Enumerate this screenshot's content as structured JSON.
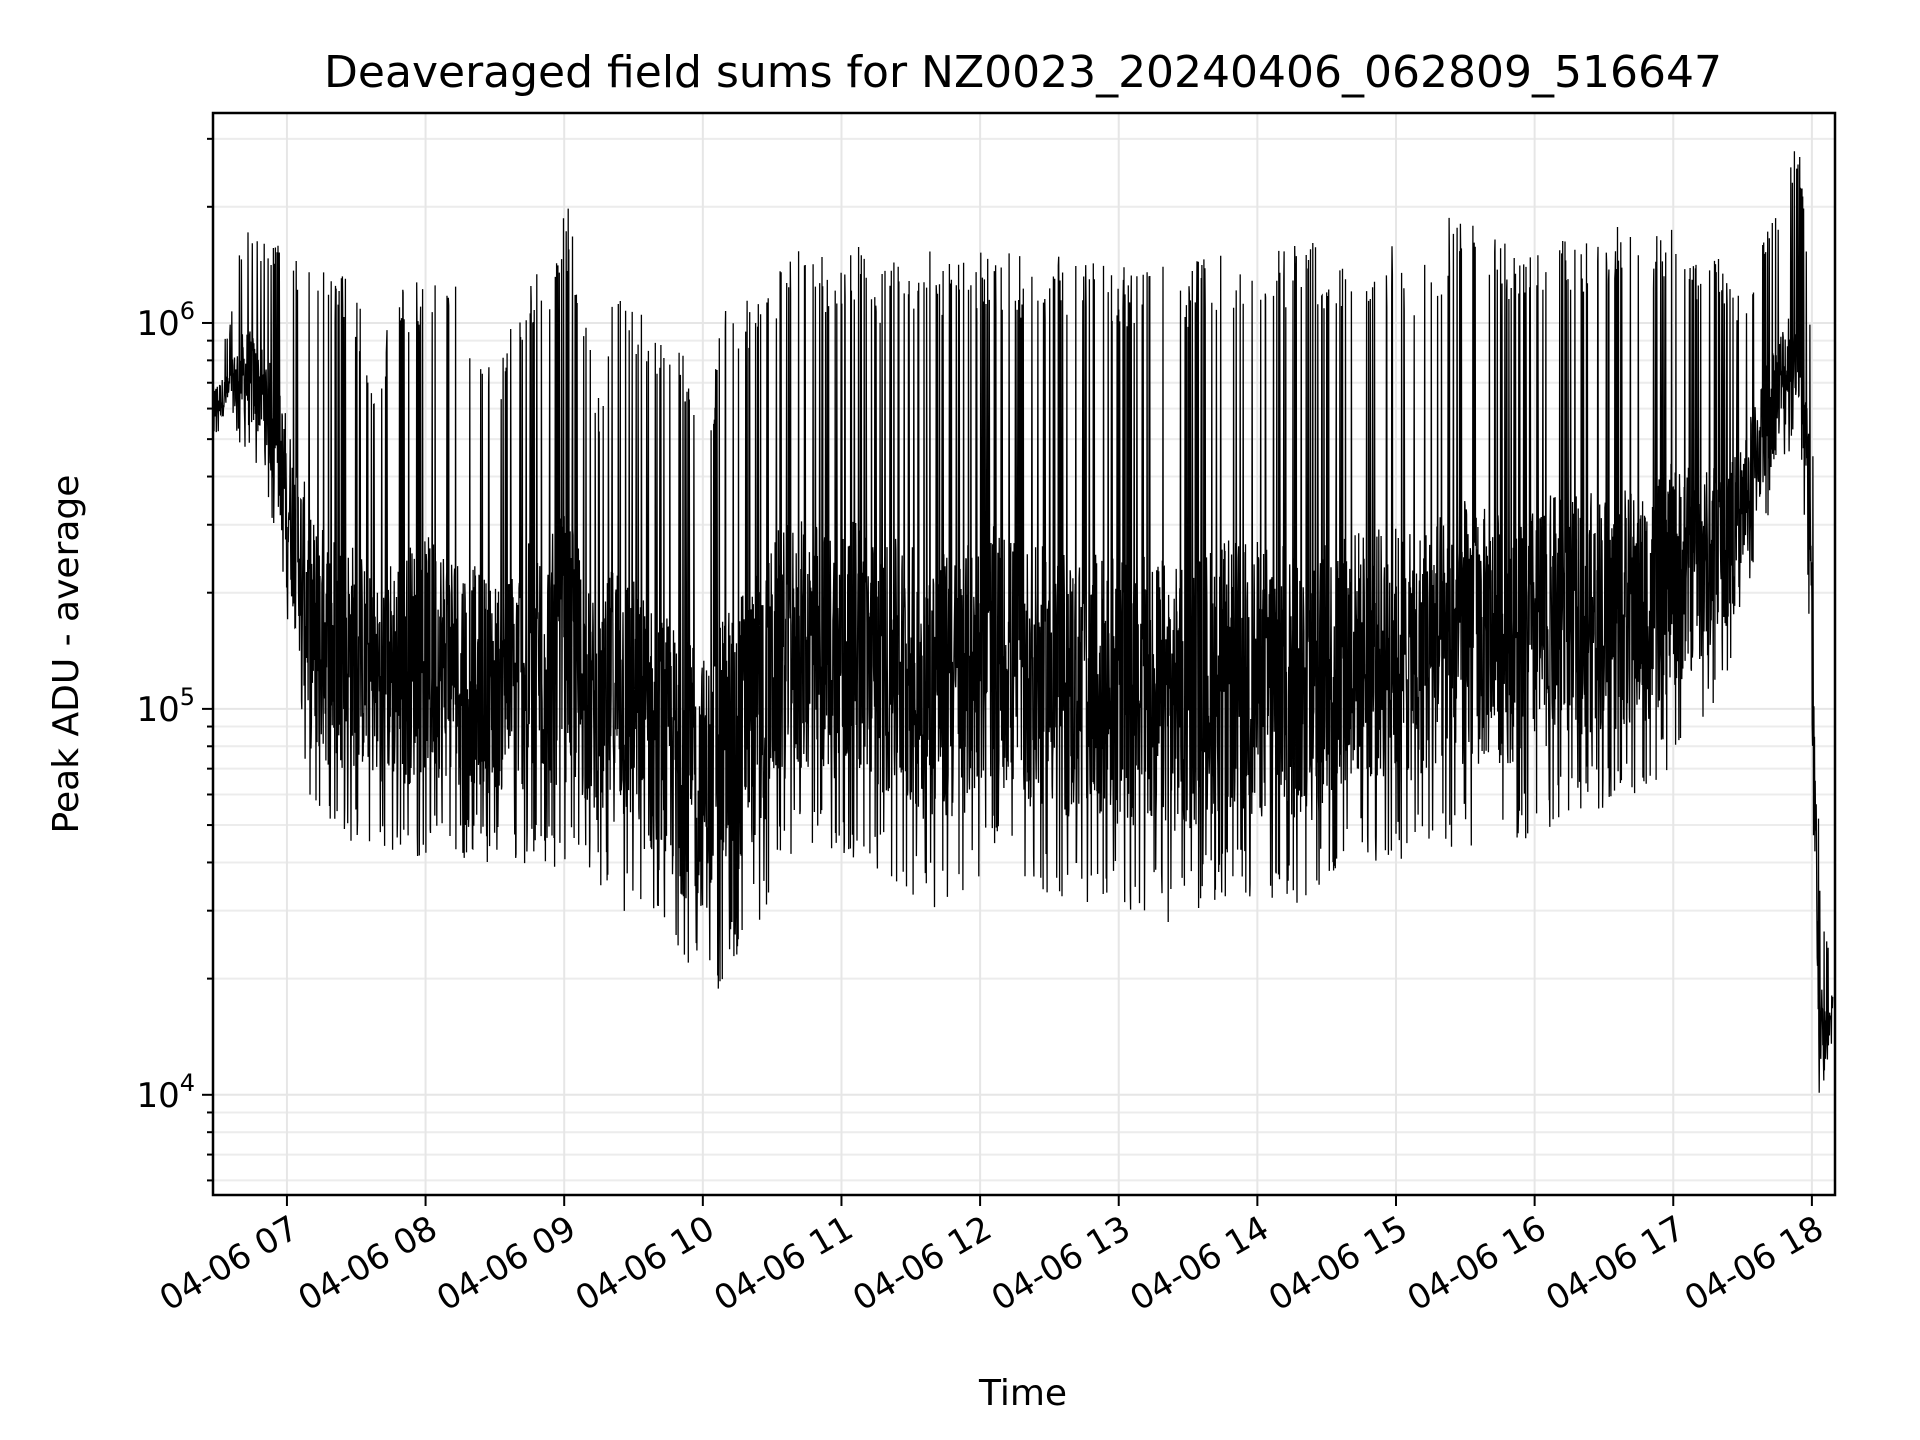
{
  "chart_data": {
    "type": "line",
    "title": "Deaveraged field sums for NZ0023_20240406_062809_516647",
    "xlabel": "Time",
    "ylabel": "Peak ADU - average",
    "yscale": "log",
    "xlim": [
      "04-06 06:28",
      "04-06 18:10"
    ],
    "ylim": [
      5500,
      3500000
    ],
    "x_ticks": [
      "04-06 07",
      "04-06 08",
      "04-06 09",
      "04-06 10",
      "04-06 11",
      "04-06 12",
      "04-06 13",
      "04-06 14",
      "04-06 15",
      "04-06 16",
      "04-06 17",
      "04-06 18"
    ],
    "y_ticks": [
      {
        "value": 10000,
        "base": "10",
        "exp": "4"
      },
      {
        "value": 100000,
        "base": "10",
        "exp": "5"
      },
      {
        "value": 1000000,
        "base": "10",
        "exp": "6"
      }
    ],
    "grid": true,
    "line_color": "#000000",
    "series": [
      {
        "x": [
          "06:28",
          "06:35",
          "06:42",
          "06:49",
          "06:56",
          "07:03",
          "07:10",
          "07:17",
          "07:24",
          "07:31",
          "07:38",
          "07:45",
          "07:52",
          "07:59",
          "08:06",
          "08:13",
          "08:20",
          "08:27",
          "08:34",
          "08:41",
          "08:48",
          "08:55",
          "09:02",
          "09:09",
          "09:16",
          "09:23",
          "09:30",
          "09:37",
          "09:44",
          "09:51",
          "09:58",
          "10:05",
          "10:12",
          "10:19",
          "10:26",
          "10:33",
          "10:40",
          "10:47",
          "10:54",
          "11:01",
          "11:08",
          "11:15",
          "11:22",
          "11:29",
          "11:36",
          "11:43",
          "11:50",
          "11:57",
          "12:04",
          "12:11",
          "12:18",
          "12:25",
          "12:32",
          "12:39",
          "12:46",
          "12:53",
          "13:00",
          "13:07",
          "13:14",
          "13:21",
          "13:28",
          "13:35",
          "13:42",
          "13:49",
          "13:56",
          "14:03",
          "14:10",
          "14:17",
          "14:24",
          "14:31",
          "14:38",
          "14:45",
          "14:52",
          "14:59",
          "15:06",
          "15:13",
          "15:20",
          "15:27",
          "15:34",
          "15:41",
          "15:48",
          "15:55",
          "16:02",
          "16:09",
          "16:16",
          "16:23",
          "16:30",
          "16:37",
          "16:44",
          "16:51",
          "16:58",
          "17:05",
          "17:12",
          "17:19",
          "17:26",
          "17:33",
          "17:40",
          "17:47",
          "17:54",
          "17:59",
          "18:01",
          "18:03",
          "18:05",
          "18:07",
          "18:09"
        ],
        "low": [
          500000,
          550000,
          450000,
          420000,
          250000,
          120000,
          50000,
          45000,
          45000,
          45000,
          45000,
          42000,
          40000,
          42000,
          42000,
          40000,
          42000,
          40000,
          40000,
          38000,
          40000,
          38000,
          38000,
          36000,
          34000,
          30000,
          28000,
          25000,
          22000,
          20000,
          19000,
          18000,
          20000,
          25000,
          28000,
          40000,
          42000,
          42000,
          42000,
          40000,
          42000,
          38000,
          35000,
          33000,
          30000,
          30000,
          30000,
          35000,
          40000,
          38000,
          35000,
          33000,
          32000,
          30000,
          30000,
          30000,
          30000,
          28000,
          28000,
          28000,
          28000,
          30000,
          32000,
          32000,
          32000,
          30000,
          30000,
          30000,
          30000,
          35000,
          40000,
          40000,
          40000,
          40000,
          40000,
          42000,
          42000,
          42000,
          42000,
          45000,
          45000,
          45000,
          48000,
          50000,
          55000,
          55000,
          55000,
          55000,
          58000,
          60000,
          70000,
          80000,
          90000,
          100000,
          130000,
          200000,
          300000,
          400000,
          500000,
          150000,
          25000,
          10000,
          9000,
          11000,
          14000
        ],
        "high": [
          900000,
          950000,
          1850000,
          1650000,
          1600000,
          1500000,
          1500000,
          1400000,
          1350000,
          1150000,
          700000,
          1100000,
          1300000,
          1300000,
          1350000,
          1250000,
          1000000,
          900000,
          850000,
          1200000,
          1400000,
          1500000,
          2050000,
          1000000,
          600000,
          1600000,
          1200000,
          1000000,
          950000,
          850000,
          700000,
          750000,
          1300000,
          1200000,
          1300000,
          1500000,
          1550000,
          1600000,
          1500000,
          1550000,
          1600000,
          1400000,
          1500000,
          1550000,
          1550000,
          1500000,
          1450000,
          1500000,
          1550000,
          1550000,
          1500000,
          1400000,
          1600000,
          1500000,
          1450000,
          1400000,
          1500000,
          1350000,
          1600000,
          1400000,
          1300000,
          1600000,
          1550000,
          1600000,
          1600000,
          1650000,
          1600000,
          1650000,
          1700000,
          1400000,
          1500000,
          1550000,
          1500000,
          1600000,
          1400000,
          1550000,
          1700000,
          2150000,
          1800000,
          1700000,
          1600000,
          1650000,
          1700000,
          1850000,
          1600000,
          1700000,
          1750000,
          1800000,
          1700000,
          1650000,
          1900000,
          1700000,
          1400000,
          1500000,
          1200000,
          1300000,
          1800000,
          2100000,
          3000000,
          1200000,
          300000,
          40000,
          30000,
          25000,
          23000
        ]
      }
    ]
  }
}
